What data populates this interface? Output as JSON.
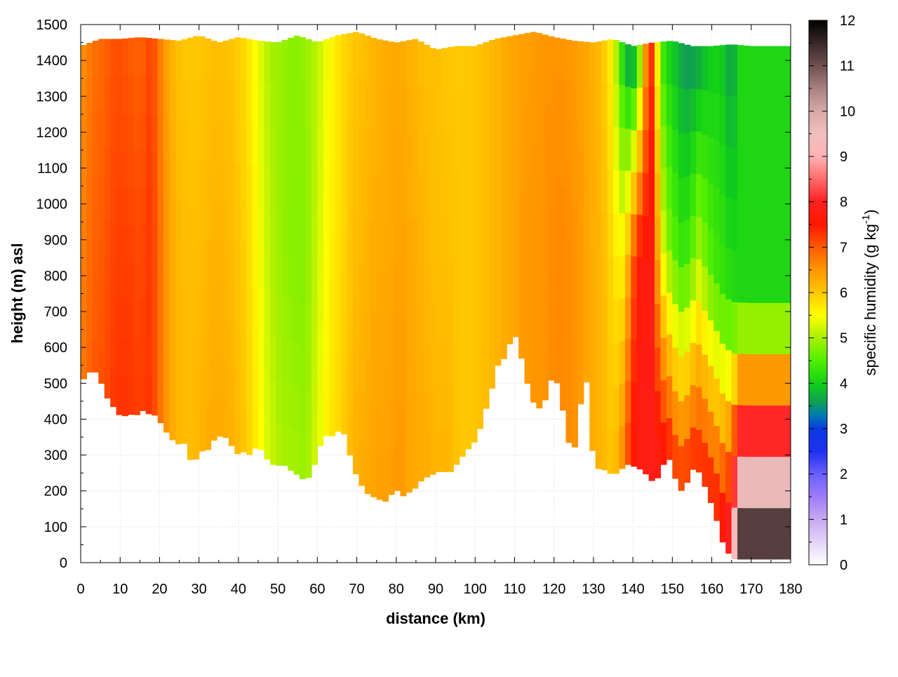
{
  "chart_data": {
    "type": "heatmap",
    "title": "",
    "xlabel": "distance (km)",
    "ylabel": "height (m) asl",
    "xlim": [
      0,
      180
    ],
    "ylim": [
      0,
      1500
    ],
    "x_ticks": [
      "0",
      "10",
      "20",
      "30",
      "40",
      "50",
      "60",
      "70",
      "80",
      "90",
      "100",
      "110",
      "120",
      "130",
      "140",
      "150",
      "160",
      "170",
      "180"
    ],
    "y_ticks": [
      "0",
      "100",
      "200",
      "300",
      "400",
      "500",
      "600",
      "700",
      "800",
      "900",
      "1000",
      "1100",
      "1200",
      "1300",
      "1400",
      "1500"
    ],
    "grid": true,
    "colorbar": {
      "label_main": "specific humidity (g kg",
      "label_sup": "-1",
      "label_close": ")",
      "range": [
        0,
        12
      ],
      "ticks": [
        "0",
        "1",
        "2",
        "3",
        "4",
        "5",
        "6",
        "7",
        "8",
        "9",
        "10",
        "11",
        "12"
      ],
      "palette": [
        [
          0,
          "#ffffff"
        ],
        [
          0.5,
          "#e4d4f8"
        ],
        [
          1.0,
          "#c8a8f0"
        ],
        [
          1.5,
          "#9c7cf8"
        ],
        [
          2.0,
          "#6a60fc"
        ],
        [
          2.5,
          "#1e30f0"
        ],
        [
          3.0,
          "#0a3ae0"
        ],
        [
          3.3,
          "#007ab0"
        ],
        [
          3.6,
          "#10a050"
        ],
        [
          4.0,
          "#12d018"
        ],
        [
          4.5,
          "#50f000"
        ],
        [
          5.0,
          "#a8f000"
        ],
        [
          5.5,
          "#ffff00"
        ],
        [
          6.0,
          "#ffc800"
        ],
        [
          6.5,
          "#ff9600"
        ],
        [
          7.0,
          "#ff5a00"
        ],
        [
          7.5,
          "#ff1800"
        ],
        [
          8.0,
          "#ff2020"
        ],
        [
          8.5,
          "#ff6a6a"
        ],
        [
          9.0,
          "#ffb2b2"
        ],
        [
          9.5,
          "#f0c0c0"
        ],
        [
          10.0,
          "#d8a8a8"
        ],
        [
          10.5,
          "#a88080"
        ],
        [
          11.0,
          "#705050"
        ],
        [
          11.5,
          "#382828"
        ],
        [
          12.0,
          "#000000"
        ]
      ]
    },
    "ground_height_m": {
      "x": [
        0,
        1,
        2,
        3,
        4,
        5,
        6,
        7,
        8,
        9,
        10,
        11,
        12,
        13,
        14,
        15,
        16,
        17,
        18,
        19,
        20,
        21,
        22,
        23,
        24,
        25,
        26,
        27,
        28,
        29,
        30,
        31,
        32,
        33,
        34,
        35,
        36,
        37,
        38,
        39,
        40,
        41,
        42,
        43,
        44,
        45,
        46,
        47,
        48,
        49,
        50,
        51,
        52,
        53,
        54,
        55,
        56,
        57,
        58,
        59,
        60,
        61,
        62,
        63,
        64,
        65,
        66,
        67,
        68,
        69,
        70,
        71,
        72,
        73,
        74,
        75,
        76,
        77,
        78,
        79,
        80,
        81,
        82,
        83,
        84,
        85,
        86,
        87,
        88,
        89,
        90,
        91,
        92,
        93,
        94,
        95,
        96,
        97,
        98,
        99,
        100,
        101,
        102,
        103,
        104,
        105,
        106,
        107,
        108,
        109,
        110,
        111,
        112,
        113,
        114,
        115,
        116,
        117,
        118,
        119,
        120,
        121,
        122,
        123,
        124,
        125,
        126,
        127,
        128,
        129,
        130,
        131,
        132,
        133,
        134,
        135,
        136,
        137,
        138,
        139,
        140,
        141,
        142,
        143,
        144,
        145,
        146,
        147,
        148,
        149,
        150,
        151,
        152,
        153,
        154,
        155,
        156,
        157,
        158,
        159,
        160,
        161,
        162,
        163,
        164,
        165,
        166,
        167,
        168,
        169,
        170,
        171,
        172,
        173,
        174,
        175,
        176,
        177,
        178,
        179,
        180
      ],
      "y": [
        490,
        520,
        530,
        535,
        530,
        510,
        470,
        455,
        440,
        420,
        410,
        410,
        408,
        415,
        410,
        420,
        425,
        415,
        415,
        410,
        395,
        375,
        360,
        345,
        335,
        330,
        340,
        310,
        280,
        285,
        300,
        315,
        310,
        330,
        345,
        350,
        360,
        345,
        330,
        315,
        300,
        310,
        305,
        300,
        315,
        330,
        310,
        290,
        285,
        270,
        270,
        275,
        270,
        260,
        250,
        245,
        235,
        230,
        240,
        265,
        300,
        335,
        355,
        350,
        355,
        365,
        370,
        355,
        310,
        270,
        240,
        220,
        200,
        190,
        185,
        180,
        175,
        170,
        175,
        195,
        205,
        190,
        185,
        195,
        200,
        210,
        225,
        235,
        240,
        245,
        250,
        255,
        255,
        250,
        255,
        270,
        285,
        300,
        315,
        325,
        340,
        365,
        400,
        440,
        475,
        520,
        560,
        565,
        580,
        620,
        640,
        600,
        560,
        510,
        470,
        440,
        430,
        435,
        460,
        500,
        535,
        490,
        440,
        380,
        320,
        310,
        360,
        470,
        545,
        380,
        290,
        265,
        255,
        260,
        250,
        245,
        250,
        260,
        270,
        275,
        270,
        265,
        260,
        250,
        240,
        225,
        230,
        255,
        280,
        300,
        250,
        230,
        200,
        205,
        230,
        260,
        260,
        250,
        220,
        190,
        160,
        130,
        80,
        50,
        30,
        15,
        10,
        10,
        10,
        10,
        10,
        10,
        10,
        10,
        10,
        10,
        10,
        10,
        10,
        10,
        10
      ]
    },
    "top_height_m": {
      "x": [
        0,
        5,
        10,
        15,
        20,
        25,
        30,
        35,
        40,
        45,
        50,
        55,
        60,
        65,
        70,
        75,
        80,
        85,
        90,
        95,
        100,
        105,
        110,
        115,
        120,
        125,
        130,
        135,
        140,
        145,
        150,
        155,
        160,
        165,
        170,
        175,
        180
      ],
      "y": [
        1440,
        1460,
        1460,
        1465,
        1460,
        1455,
        1470,
        1450,
        1465,
        1455,
        1450,
        1470,
        1450,
        1470,
        1480,
        1460,
        1450,
        1460,
        1430,
        1440,
        1440,
        1460,
        1470,
        1480,
        1465,
        1455,
        1450,
        1460,
        1440,
        1450,
        1455,
        1440,
        1440,
        1445,
        1440,
        1440,
        1440
      ]
    },
    "humidity_columns": {
      "x": [
        0,
        3,
        6,
        9,
        12,
        15,
        18,
        21,
        24,
        27,
        30,
        33,
        36,
        39,
        42,
        45,
        48,
        51,
        54,
        57,
        60,
        63,
        66,
        69,
        72,
        75,
        78,
        81,
        84,
        87,
        90,
        93,
        96,
        99,
        102,
        105,
        108,
        111,
        114,
        117,
        120,
        123,
        126,
        129,
        132,
        135,
        137,
        139,
        141,
        143,
        145,
        147,
        149,
        151,
        153,
        155,
        157,
        159,
        161,
        163,
        165,
        167,
        169,
        171,
        173,
        175,
        177,
        180
      ],
      "near_ground": [
        6.7,
        7.0,
        7.1,
        7.3,
        7.3,
        7.2,
        7.3,
        6.6,
        6.2,
        6.1,
        6.2,
        6.3,
        6.3,
        6.2,
        6.0,
        5.6,
        5.2,
        5.0,
        5.0,
        4.9,
        5.3,
        5.7,
        5.9,
        6.2,
        6.3,
        6.4,
        6.4,
        6.5,
        6.3,
        6.3,
        6.2,
        6.2,
        6.0,
        6.0,
        6.1,
        6.2,
        6.3,
        6.4,
        6.5,
        6.5,
        6.6,
        6.6,
        6.5,
        6.3,
        6.2,
        6.0,
        6.5,
        7.3,
        7.8,
        7.8,
        7.9,
        7.9,
        7.6,
        7.4,
        7.4,
        7.5,
        7.5,
        7.6,
        7.6,
        8.0,
        8.6,
        12.0,
        12.0,
        12.0,
        12.0,
        12.0,
        12.0,
        12.0
      ],
      "mid_level": [
        6.6,
        6.9,
        7.0,
        7.2,
        7.2,
        7.1,
        7.3,
        6.6,
        6.2,
        6.1,
        6.1,
        6.2,
        6.2,
        6.1,
        5.9,
        5.5,
        5.1,
        4.9,
        4.8,
        4.8,
        5.2,
        5.6,
        5.8,
        6.1,
        6.2,
        6.3,
        6.3,
        6.4,
        6.3,
        6.2,
        6.1,
        6.1,
        6.0,
        6.0,
        6.1,
        6.2,
        6.3,
        6.4,
        6.5,
        6.5,
        6.6,
        6.6,
        6.5,
        6.3,
        6.2,
        5.8,
        5.5,
        6.3,
        7.6,
        7.7,
        7.8,
        5.6,
        4.8,
        4.5,
        4.3,
        4.6,
        5.1,
        4.6,
        4.4,
        4.3,
        4.2,
        4.1,
        4.1,
        4.1,
        4.1,
        4.1,
        4.1,
        4.1
      ],
      "upper_level": [
        6.5,
        6.8,
        6.9,
        7.1,
        7.0,
        6.9,
        7.2,
        6.5,
        6.1,
        6.0,
        6.0,
        6.1,
        6.1,
        6.0,
        5.8,
        5.4,
        5.0,
        4.9,
        4.8,
        4.9,
        5.1,
        5.5,
        5.8,
        6.0,
        6.1,
        6.2,
        6.3,
        6.3,
        6.2,
        6.1,
        6.1,
        6.0,
        6.0,
        6.0,
        6.1,
        6.2,
        6.3,
        6.4,
        6.4,
        6.5,
        6.5,
        6.5,
        6.4,
        6.3,
        6.1,
        5.5,
        4.2,
        3.4,
        3.6,
        6.3,
        7.4,
        4.4,
        4.0,
        3.8,
        3.5,
        3.5,
        3.6,
        3.9,
        4.0,
        3.9,
        3.5,
        4.1,
        4.1,
        4.1,
        4.1,
        4.1,
        4.1,
        4.1
      ]
    }
  }
}
